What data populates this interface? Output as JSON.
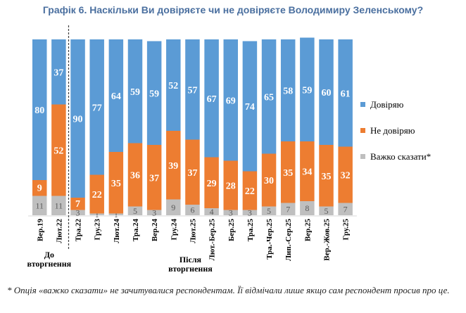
{
  "chart_data": {
    "type": "bar",
    "stacked": true,
    "title": "Графік 6. Наскільки Ви довіряєте чи не довіряєте Володимиру Зеленському?",
    "categories": [
      "Вер.19",
      "Лют.22",
      "Тра.22",
      "Гру.23",
      "Лют.24",
      "Тра.24",
      "Вер.24",
      "Гру.24",
      "Лют.25",
      "Лют.-Бер.25",
      "Бер.25",
      "Тра.25",
      "Тра.-Чер.25",
      "Лип.-Сер.25",
      "Вер.25",
      "Вер.-Жов.25",
      "Гру.25"
    ],
    "series": [
      {
        "name": "Важко сказати*",
        "color": "#bfbfbf",
        "values": [
          11,
          11,
          3,
          1,
          1,
          5,
          3,
          9,
          6,
          4,
          3,
          3,
          5,
          7,
          8,
          5,
          7
        ]
      },
      {
        "name": "Не довіряю",
        "color": "#ed7d31",
        "values": [
          9,
          52,
          7,
          22,
          35,
          36,
          37,
          39,
          37,
          29,
          28,
          22,
          30,
          35,
          34,
          35,
          32
        ]
      },
      {
        "name": "Довіряю",
        "color": "#5b9bd5",
        "values": [
          80,
          37,
          90,
          77,
          64,
          59,
          59,
          52,
          57,
          67,
          69,
          74,
          65,
          58,
          59,
          60,
          61
        ]
      }
    ],
    "ylim": [
      0,
      100
    ],
    "legend_order": [
      "Довіряю",
      "Не довіряю",
      "Важко сказати*"
    ],
    "legend_position": "right",
    "annotations": [
      "До вторгнення",
      "Після вторгнення"
    ],
    "grid": false
  },
  "footnote": "* Опція «важко сказати» не зачитувалися респондентам. Її відмічали лише якщо сам респондент просив про це."
}
